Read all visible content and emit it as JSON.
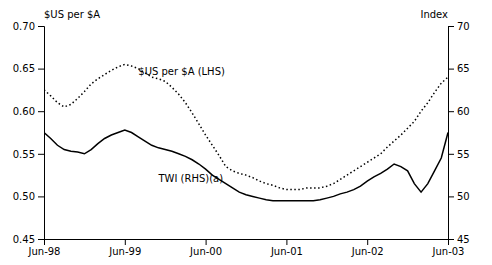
{
  "chart_data": {
    "type": "line",
    "ylabel": "$US per $A",
    "y2label": "Index",
    "x": [
      0,
      1,
      2,
      3,
      4,
      5,
      6,
      7,
      8,
      9,
      10,
      11,
      12,
      13,
      14,
      15,
      16,
      17,
      18,
      19,
      20,
      21,
      22,
      23,
      24,
      25,
      26,
      27,
      28,
      29,
      30,
      31,
      32,
      33,
      34,
      35,
      36,
      37,
      38,
      39,
      40,
      41,
      42,
      43,
      44,
      45,
      46,
      47,
      48,
      49,
      50,
      51,
      52,
      53,
      54,
      55,
      56,
      57,
      58,
      59,
      60
    ],
    "xlim": [
      0,
      60
    ],
    "xticks": [
      {
        "value": 0,
        "label": "Jun-98"
      },
      {
        "value": 12,
        "label": "Jun-99"
      },
      {
        "value": 24,
        "label": "Jun-00"
      },
      {
        "value": 36,
        "label": "Jun-01"
      },
      {
        "value": 48,
        "label": "Jun-02"
      },
      {
        "value": 60,
        "label": "Jun-03"
      }
    ],
    "ylim": [
      0.45,
      0.7
    ],
    "yticks": [
      0.45,
      {
        "value": 0.5,
        "label": "0.50"
      },
      0.55,
      {
        "value": 0.6,
        "label": "0.60"
      },
      0.65,
      {
        "value": 0.7,
        "label": "0.70"
      }
    ],
    "y2lim": [
      45,
      70
    ],
    "y2ticks": [
      45,
      50,
      55,
      60,
      65,
      70
    ],
    "grid": false,
    "series": [
      {
        "color": "#000000",
        "line_style": "dotted",
        "values": [
          0.625,
          0.618,
          0.61,
          0.605,
          0.608,
          0.615,
          0.623,
          0.632,
          0.638,
          0.643,
          0.648,
          0.652,
          0.655,
          0.653,
          0.65,
          0.645,
          0.64,
          0.638,
          0.635,
          0.628,
          0.62,
          0.61,
          0.598,
          0.585,
          0.572,
          0.56,
          0.548,
          0.535,
          0.53,
          0.527,
          0.525,
          0.522,
          0.518,
          0.515,
          0.513,
          0.51,
          0.508,
          0.508,
          0.508,
          0.51,
          0.51,
          0.51,
          0.512,
          0.515,
          0.52,
          0.525,
          0.53,
          0.535,
          0.54,
          0.545,
          0.55,
          0.558,
          0.565,
          0.572,
          0.58,
          0.588,
          0.6,
          0.61,
          0.622,
          0.633,
          0.64
        ]
      },
      {
        "color": "#000000",
        "line_style": "solid",
        "axis": "y2",
        "values": [
          57.5,
          56.8,
          56.0,
          55.5,
          55.3,
          55.2,
          55.0,
          55.5,
          56.2,
          56.8,
          57.2,
          57.5,
          57.8,
          57.5,
          57.0,
          56.5,
          56.0,
          55.7,
          55.5,
          55.3,
          55.0,
          54.7,
          54.3,
          53.8,
          53.2,
          52.5,
          52.0,
          51.5,
          51.0,
          50.5,
          50.2,
          50.0,
          49.8,
          49.6,
          49.5,
          49.5,
          49.5,
          49.5,
          49.5,
          49.5,
          49.5,
          49.6,
          49.8,
          50.0,
          50.3,
          50.5,
          50.8,
          51.2,
          51.8,
          52.3,
          52.7,
          53.2,
          53.8,
          53.5,
          53.0,
          51.5,
          50.5,
          51.5,
          53.0,
          54.5,
          57.5
        ]
      }
    ],
    "annotations": [
      {
        "text": "$US per $A (LHS)",
        "x": 14,
        "y": 0.643
      },
      {
        "text": "TWI (RHS)(a)",
        "x": 17,
        "y": 0.517
      }
    ]
  }
}
